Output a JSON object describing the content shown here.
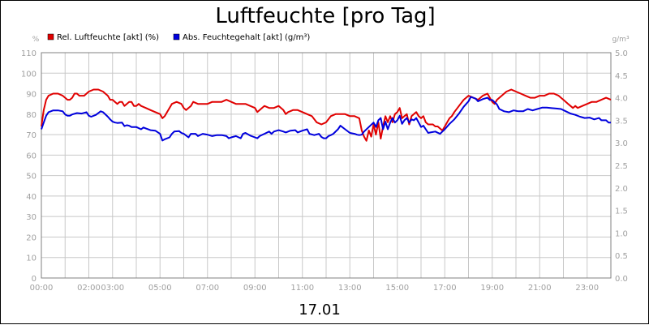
{
  "chart_data": {
    "type": "line",
    "title": "Luftfeuchte [pro Tag]",
    "date_label": "17.01",
    "y_left": {
      "unit": "%",
      "min": 0,
      "max": 110,
      "step": 10
    },
    "y_right": {
      "unit": "g/m³",
      "min": 0,
      "max": 5,
      "step": 0.5
    },
    "x_ticks": [
      "00:00",
      "02:00",
      "03:00",
      "05:00",
      "07:00",
      "09:00",
      "11:00",
      "13:00",
      "15:00",
      "17:00",
      "19:00",
      "21:00",
      "23:00"
    ],
    "x_tick_hours": [
      0,
      2,
      3,
      5,
      7,
      9,
      11,
      13,
      15,
      17,
      19,
      21,
      23
    ],
    "x_range_hours": [
      0,
      24
    ],
    "grid": true,
    "legend_position": "top-left",
    "series": [
      {
        "name": "Rel. Luftfeuchte [akt] (%)",
        "axis": "left",
        "color": "#e00000",
        "points": [
          [
            0.0,
            74
          ],
          [
            0.1,
            82
          ],
          [
            0.2,
            87
          ],
          [
            0.3,
            89
          ],
          [
            0.5,
            90
          ],
          [
            0.7,
            90
          ],
          [
            0.9,
            89
          ],
          [
            1.0,
            88
          ],
          [
            1.1,
            87
          ],
          [
            1.2,
            87
          ],
          [
            1.3,
            88
          ],
          [
            1.4,
            90
          ],
          [
            1.5,
            90
          ],
          [
            1.6,
            89
          ],
          [
            1.8,
            89
          ],
          [
            2.0,
            91
          ],
          [
            2.2,
            92
          ],
          [
            2.4,
            92
          ],
          [
            2.6,
            91
          ],
          [
            2.8,
            89
          ],
          [
            2.9,
            87
          ],
          [
            3.0,
            87
          ],
          [
            3.1,
            86
          ],
          [
            3.2,
            85
          ],
          [
            3.3,
            86
          ],
          [
            3.4,
            86
          ],
          [
            3.5,
            84
          ],
          [
            3.6,
            85
          ],
          [
            3.7,
            86
          ],
          [
            3.8,
            86
          ],
          [
            3.9,
            84
          ],
          [
            4.0,
            84
          ],
          [
            4.1,
            85
          ],
          [
            4.2,
            84
          ],
          [
            4.4,
            83
          ],
          [
            4.6,
            82
          ],
          [
            4.8,
            81
          ],
          [
            5.0,
            80
          ],
          [
            5.1,
            78
          ],
          [
            5.2,
            79
          ],
          [
            5.3,
            81
          ],
          [
            5.5,
            85
          ],
          [
            5.7,
            86
          ],
          [
            5.9,
            85
          ],
          [
            6.0,
            83
          ],
          [
            6.1,
            82
          ],
          [
            6.3,
            84
          ],
          [
            6.4,
            86
          ],
          [
            6.6,
            85
          ],
          [
            6.8,
            85
          ],
          [
            7.0,
            85
          ],
          [
            7.2,
            86
          ],
          [
            7.4,
            86
          ],
          [
            7.6,
            86
          ],
          [
            7.8,
            87
          ],
          [
            8.0,
            86
          ],
          [
            8.2,
            85
          ],
          [
            8.4,
            85
          ],
          [
            8.6,
            85
          ],
          [
            8.8,
            84
          ],
          [
            9.0,
            83
          ],
          [
            9.1,
            81
          ],
          [
            9.2,
            82
          ],
          [
            9.4,
            84
          ],
          [
            9.6,
            83
          ],
          [
            9.8,
            83
          ],
          [
            10.0,
            84
          ],
          [
            10.2,
            82
          ],
          [
            10.3,
            80
          ],
          [
            10.4,
            81
          ],
          [
            10.6,
            82
          ],
          [
            10.8,
            82
          ],
          [
            11.0,
            81
          ],
          [
            11.2,
            80
          ],
          [
            11.4,
            79
          ],
          [
            11.6,
            76
          ],
          [
            11.8,
            75
          ],
          [
            12.0,
            76
          ],
          [
            12.2,
            79
          ],
          [
            12.4,
            80
          ],
          [
            12.6,
            80
          ],
          [
            12.8,
            80
          ],
          [
            13.0,
            79
          ],
          [
            13.2,
            79
          ],
          [
            13.4,
            78
          ],
          [
            13.5,
            72
          ],
          [
            13.6,
            69
          ],
          [
            13.7,
            67
          ],
          [
            13.8,
            72
          ],
          [
            13.9,
            69
          ],
          [
            14.0,
            75
          ],
          [
            14.1,
            70
          ],
          [
            14.2,
            76
          ],
          [
            14.3,
            68
          ],
          [
            14.4,
            74
          ],
          [
            14.5,
            79
          ],
          [
            14.6,
            76
          ],
          [
            14.7,
            79
          ],
          [
            14.8,
            76
          ],
          [
            14.9,
            80
          ],
          [
            15.0,
            81
          ],
          [
            15.1,
            83
          ],
          [
            15.2,
            78
          ],
          [
            15.3,
            79
          ],
          [
            15.4,
            80
          ],
          [
            15.5,
            75
          ],
          [
            15.6,
            79
          ],
          [
            15.7,
            80
          ],
          [
            15.8,
            81
          ],
          [
            15.9,
            79
          ],
          [
            16.0,
            78
          ],
          [
            16.1,
            79
          ],
          [
            16.2,
            76
          ],
          [
            16.3,
            75
          ],
          [
            16.4,
            75
          ],
          [
            16.5,
            75
          ],
          [
            16.6,
            74
          ],
          [
            16.7,
            74
          ],
          [
            16.8,
            73
          ],
          [
            16.9,
            72
          ],
          [
            17.0,
            74
          ],
          [
            17.1,
            76
          ],
          [
            17.2,
            78
          ],
          [
            17.3,
            79
          ],
          [
            17.4,
            81
          ],
          [
            17.6,
            84
          ],
          [
            17.8,
            87
          ],
          [
            18.0,
            89
          ],
          [
            18.2,
            88
          ],
          [
            18.4,
            87
          ],
          [
            18.6,
            89
          ],
          [
            18.8,
            90
          ],
          [
            18.9,
            88
          ],
          [
            19.0,
            86
          ],
          [
            19.1,
            85
          ],
          [
            19.2,
            87
          ],
          [
            19.4,
            89
          ],
          [
            19.6,
            91
          ],
          [
            19.8,
            92
          ],
          [
            20.0,
            91
          ],
          [
            20.2,
            90
          ],
          [
            20.4,
            89
          ],
          [
            20.6,
            88
          ],
          [
            20.8,
            88
          ],
          [
            21.0,
            89
          ],
          [
            21.2,
            89
          ],
          [
            21.4,
            90
          ],
          [
            21.6,
            90
          ],
          [
            21.8,
            89
          ],
          [
            22.0,
            87
          ],
          [
            22.2,
            85
          ],
          [
            22.4,
            83
          ],
          [
            22.5,
            84
          ],
          [
            22.6,
            83
          ],
          [
            22.8,
            84
          ],
          [
            23.0,
            85
          ],
          [
            23.2,
            86
          ],
          [
            23.4,
            86
          ],
          [
            23.6,
            87
          ],
          [
            23.8,
            88
          ],
          [
            24.0,
            87
          ]
        ]
      },
      {
        "name": "Abs. Feuchtegehalt [akt] (g/m³)",
        "axis": "right",
        "color": "#0000dd",
        "points": [
          [
            0.0,
            3.3
          ],
          [
            0.1,
            3.45
          ],
          [
            0.2,
            3.6
          ],
          [
            0.3,
            3.68
          ],
          [
            0.5,
            3.72
          ],
          [
            0.7,
            3.72
          ],
          [
            0.9,
            3.7
          ],
          [
            1.0,
            3.63
          ],
          [
            1.1,
            3.6
          ],
          [
            1.2,
            3.6
          ],
          [
            1.3,
            3.63
          ],
          [
            1.5,
            3.66
          ],
          [
            1.7,
            3.65
          ],
          [
            1.9,
            3.68
          ],
          [
            2.0,
            3.6
          ],
          [
            2.1,
            3.58
          ],
          [
            2.3,
            3.62
          ],
          [
            2.5,
            3.7
          ],
          [
            2.6,
            3.68
          ],
          [
            2.8,
            3.58
          ],
          [
            2.9,
            3.52
          ],
          [
            3.0,
            3.47
          ],
          [
            3.1,
            3.45
          ],
          [
            3.2,
            3.44
          ],
          [
            3.4,
            3.45
          ],
          [
            3.5,
            3.37
          ],
          [
            3.6,
            3.39
          ],
          [
            3.7,
            3.38
          ],
          [
            3.8,
            3.35
          ],
          [
            4.0,
            3.35
          ],
          [
            4.2,
            3.3
          ],
          [
            4.3,
            3.34
          ],
          [
            4.4,
            3.32
          ],
          [
            4.6,
            3.28
          ],
          [
            4.8,
            3.27
          ],
          [
            5.0,
            3.2
          ],
          [
            5.1,
            3.05
          ],
          [
            5.2,
            3.08
          ],
          [
            5.4,
            3.12
          ],
          [
            5.5,
            3.2
          ],
          [
            5.6,
            3.25
          ],
          [
            5.8,
            3.26
          ],
          [
            5.9,
            3.22
          ],
          [
            6.0,
            3.2
          ],
          [
            6.2,
            3.12
          ],
          [
            6.3,
            3.2
          ],
          [
            6.5,
            3.2
          ],
          [
            6.6,
            3.15
          ],
          [
            6.8,
            3.2
          ],
          [
            7.0,
            3.18
          ],
          [
            7.2,
            3.15
          ],
          [
            7.4,
            3.17
          ],
          [
            7.6,
            3.17
          ],
          [
            7.8,
            3.15
          ],
          [
            7.9,
            3.1
          ],
          [
            8.0,
            3.12
          ],
          [
            8.2,
            3.15
          ],
          [
            8.4,
            3.1
          ],
          [
            8.5,
            3.2
          ],
          [
            8.6,
            3.22
          ],
          [
            8.8,
            3.16
          ],
          [
            9.0,
            3.12
          ],
          [
            9.1,
            3.1
          ],
          [
            9.2,
            3.15
          ],
          [
            9.4,
            3.2
          ],
          [
            9.6,
            3.25
          ],
          [
            9.7,
            3.2
          ],
          [
            9.8,
            3.25
          ],
          [
            10.0,
            3.28
          ],
          [
            10.2,
            3.25
          ],
          [
            10.3,
            3.23
          ],
          [
            10.5,
            3.27
          ],
          [
            10.7,
            3.28
          ],
          [
            10.8,
            3.23
          ],
          [
            11.0,
            3.27
          ],
          [
            11.2,
            3.3
          ],
          [
            11.3,
            3.2
          ],
          [
            11.5,
            3.17
          ],
          [
            11.7,
            3.2
          ],
          [
            11.8,
            3.13
          ],
          [
            11.9,
            3.1
          ],
          [
            12.0,
            3.1
          ],
          [
            12.1,
            3.15
          ],
          [
            12.2,
            3.17
          ],
          [
            12.3,
            3.2
          ],
          [
            12.5,
            3.3
          ],
          [
            12.6,
            3.38
          ],
          [
            12.8,
            3.3
          ],
          [
            13.0,
            3.22
          ],
          [
            13.2,
            3.2
          ],
          [
            13.3,
            3.18
          ],
          [
            13.4,
            3.17
          ],
          [
            13.5,
            3.18
          ],
          [
            13.6,
            3.25
          ],
          [
            13.8,
            3.35
          ],
          [
            14.0,
            3.45
          ],
          [
            14.1,
            3.35
          ],
          [
            14.2,
            3.5
          ],
          [
            14.3,
            3.55
          ],
          [
            14.4,
            3.3
          ],
          [
            14.5,
            3.47
          ],
          [
            14.6,
            3.3
          ],
          [
            14.7,
            3.45
          ],
          [
            14.8,
            3.55
          ],
          [
            14.9,
            3.45
          ],
          [
            15.0,
            3.5
          ],
          [
            15.1,
            3.6
          ],
          [
            15.2,
            3.42
          ],
          [
            15.3,
            3.5
          ],
          [
            15.4,
            3.55
          ],
          [
            15.5,
            3.45
          ],
          [
            15.6,
            3.52
          ],
          [
            15.7,
            3.5
          ],
          [
            15.8,
            3.55
          ],
          [
            15.9,
            3.45
          ],
          [
            16.0,
            3.35
          ],
          [
            16.1,
            3.38
          ],
          [
            16.3,
            3.22
          ],
          [
            16.4,
            3.23
          ],
          [
            16.6,
            3.25
          ],
          [
            16.8,
            3.2
          ],
          [
            16.9,
            3.25
          ],
          [
            17.0,
            3.3
          ],
          [
            17.2,
            3.42
          ],
          [
            17.4,
            3.52
          ],
          [
            17.6,
            3.65
          ],
          [
            17.8,
            3.8
          ],
          [
            18.0,
            3.92
          ],
          [
            18.1,
            4.02
          ],
          [
            18.3,
            3.98
          ],
          [
            18.4,
            3.92
          ],
          [
            18.6,
            3.97
          ],
          [
            18.8,
            4.0
          ],
          [
            18.9,
            3.95
          ],
          [
            19.0,
            3.95
          ],
          [
            19.2,
            3.85
          ],
          [
            19.3,
            3.75
          ],
          [
            19.5,
            3.7
          ],
          [
            19.7,
            3.68
          ],
          [
            19.9,
            3.72
          ],
          [
            20.1,
            3.7
          ],
          [
            20.3,
            3.7
          ],
          [
            20.5,
            3.75
          ],
          [
            20.7,
            3.72
          ],
          [
            20.9,
            3.75
          ],
          [
            21.1,
            3.78
          ],
          [
            21.3,
            3.78
          ],
          [
            21.5,
            3.77
          ],
          [
            21.7,
            3.76
          ],
          [
            21.9,
            3.75
          ],
          [
            22.1,
            3.7
          ],
          [
            22.3,
            3.65
          ],
          [
            22.5,
            3.62
          ],
          [
            22.7,
            3.58
          ],
          [
            22.9,
            3.55
          ],
          [
            23.1,
            3.56
          ],
          [
            23.3,
            3.52
          ],
          [
            23.5,
            3.55
          ],
          [
            23.6,
            3.5
          ],
          [
            23.8,
            3.5
          ],
          [
            23.9,
            3.45
          ],
          [
            24.0,
            3.45
          ]
        ]
      }
    ]
  }
}
